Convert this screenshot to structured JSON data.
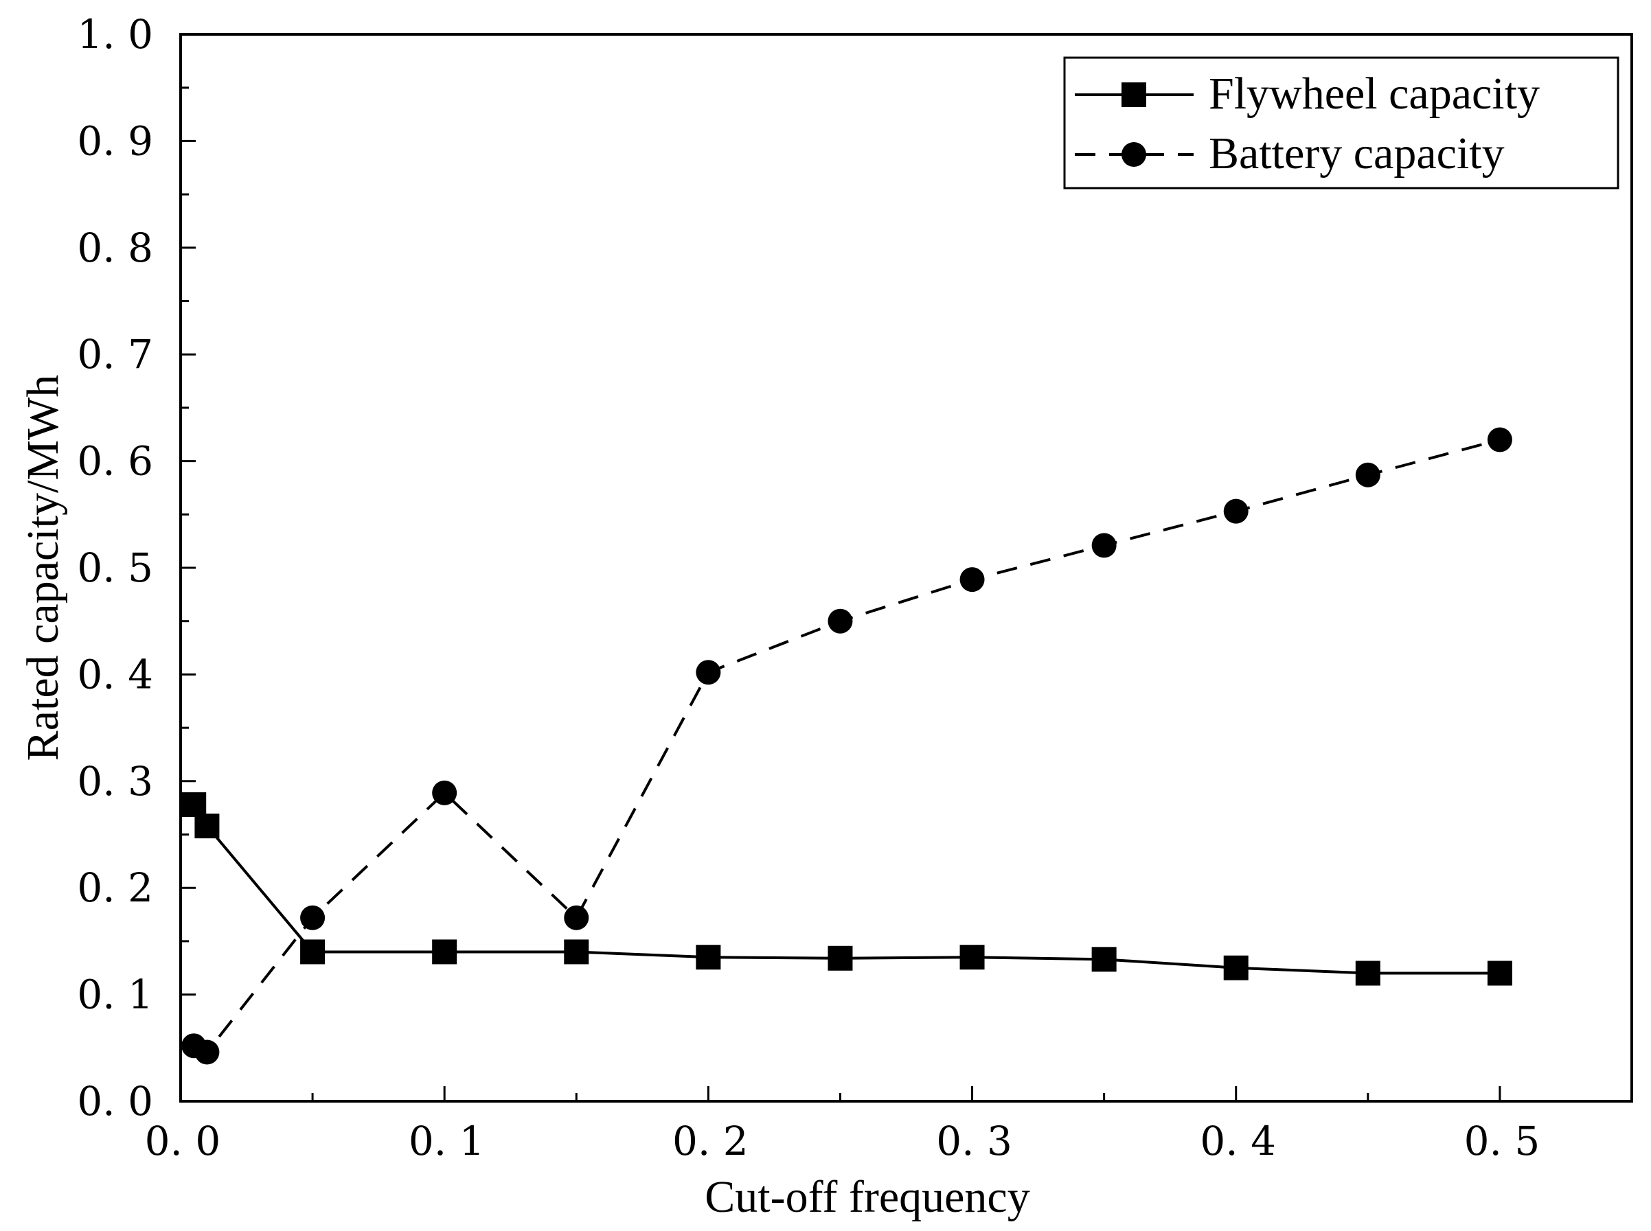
{
  "chart_data": {
    "type": "line",
    "title": "",
    "xlabel": "Cut-off frequency",
    "ylabel": "Rated capacity/MWh",
    "xlim": [
      0.0,
      0.55
    ],
    "ylim": [
      0.0,
      1.0
    ],
    "x_ticks": [
      0.0,
      0.1,
      0.2,
      0.3,
      0.4,
      0.5
    ],
    "x_tick_labels": [
      "0. 0",
      "0. 1",
      "0. 2",
      "0. 3",
      "0. 4",
      "0. 5"
    ],
    "y_ticks": [
      0.0,
      0.1,
      0.2,
      0.3,
      0.4,
      0.5,
      0.6,
      0.7,
      0.8,
      0.9,
      1.0
    ],
    "y_tick_labels": [
      "0. 0",
      "0. 1",
      "0. 2",
      "0. 3",
      "0. 4",
      "0. 5",
      "0. 6",
      "0. 7",
      "0. 8",
      "0. 9",
      "1. 0"
    ],
    "grid": false,
    "legend_position": "top-right",
    "series": [
      {
        "name": "Flywheel capacity",
        "line_style": "solid",
        "marker": "square",
        "color": "#000000",
        "x": [
          0.005,
          0.01,
          0.05,
          0.1,
          0.15,
          0.2,
          0.25,
          0.3,
          0.35,
          0.4,
          0.45,
          0.5
        ],
        "y": [
          0.278,
          0.258,
          0.14,
          0.14,
          0.14,
          0.135,
          0.134,
          0.135,
          0.133,
          0.125,
          0.12,
          0.12
        ]
      },
      {
        "name": "Battery capacity",
        "line_style": "dashed",
        "marker": "circle",
        "color": "#000000",
        "x": [
          0.005,
          0.01,
          0.05,
          0.1,
          0.15,
          0.2,
          0.25,
          0.3,
          0.35,
          0.4,
          0.45,
          0.5
        ],
        "y": [
          0.052,
          0.046,
          0.172,
          0.289,
          0.172,
          0.402,
          0.45,
          0.489,
          0.521,
          0.553,
          0.587,
          0.62
        ]
      }
    ]
  }
}
